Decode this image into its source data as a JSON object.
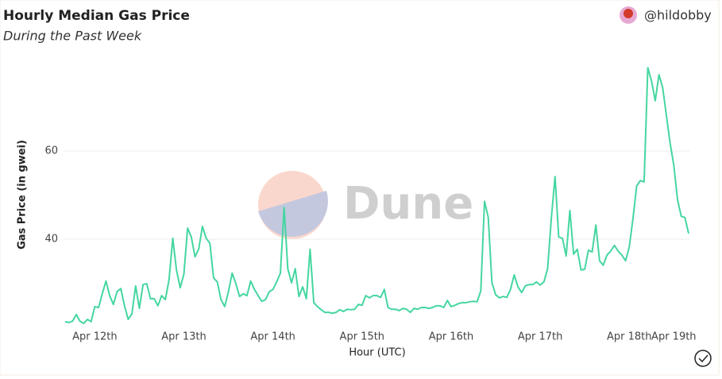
{
  "chart_data": {
    "type": "line",
    "title": "Hourly Median Gas Price",
    "subtitle": "During the Past Week",
    "author": "@hildobby",
    "watermark": "Dune",
    "x_label": "Hour (UTC)",
    "y_label": "Gas Price (in gwei)",
    "series": [
      {
        "name": "Gas Price",
        "color": "#45d6a0",
        "values": [
          21.3,
          21.1,
          21.4,
          22.9,
          21.4,
          20.9,
          21.8,
          21.3,
          24.7,
          24.5,
          27.6,
          30.5,
          27.2,
          25.2,
          28.1,
          28.8,
          24.9,
          21.8,
          23.1,
          29.4,
          24.3,
          29.7,
          29.9,
          26.5,
          26.5,
          24.9,
          27.2,
          26.3,
          30.8,
          40.2,
          33.0,
          29.0,
          32.1,
          42.5,
          40.5,
          36.0,
          37.8,
          42.9,
          40.2,
          39.1,
          31.2,
          30.3,
          26.3,
          24.7,
          28.1,
          32.3,
          29.9,
          27.0,
          27.6,
          27.2,
          30.5,
          28.6,
          27.2,
          25.9,
          26.3,
          28.1,
          28.6,
          30.3,
          32.3,
          47.2,
          33.3,
          30.1,
          33.3,
          27.0,
          29.2,
          26.5,
          37.7,
          25.6,
          24.7,
          24.0,
          23.4,
          23.4,
          23.2,
          23.4,
          24.0,
          23.6,
          24.1,
          24.0,
          24.1,
          25.2,
          25.0,
          27.2,
          26.7,
          27.2,
          27.2,
          26.8,
          28.6,
          24.5,
          24.1,
          24.1,
          23.8,
          24.3,
          24.1,
          23.4,
          24.3,
          24.1,
          24.5,
          24.5,
          24.3,
          24.5,
          24.9,
          24.9,
          24.5,
          26.1,
          24.7,
          25.0,
          25.4,
          25.6,
          25.6,
          25.8,
          25.9,
          25.8,
          28.3,
          48.6,
          45.0,
          30.1,
          27.4,
          26.7,
          27.0,
          26.8,
          28.6,
          31.9,
          29.2,
          27.9,
          29.4,
          29.7,
          29.7,
          30.3,
          29.6,
          30.3,
          33.3,
          44.7,
          54.2,
          40.5,
          40.2,
          36.2,
          46.5,
          36.6,
          37.7,
          33.0,
          33.2,
          37.5,
          37.1,
          43.2,
          35.1,
          34.1,
          36.4,
          37.3,
          38.6,
          37.3,
          36.4,
          35.1,
          38.2,
          44.7,
          52.1,
          53.3,
          53.0,
          78.9,
          75.9,
          71.4,
          77.3,
          74.4,
          68.1,
          61.8,
          56.8,
          49.0,
          45.2,
          44.9,
          41.3
        ]
      }
    ],
    "xlim": [
      0,
      168
    ],
    "xticks": [
      {
        "value": 8,
        "label": "Apr 12th"
      },
      {
        "value": 32,
        "label": "Apr 13th"
      },
      {
        "value": 56,
        "label": "Apr 14th"
      },
      {
        "value": 80,
        "label": "Apr 15th"
      },
      {
        "value": 104,
        "label": "Apr 16th"
      },
      {
        "value": 128,
        "label": "Apr 17th"
      },
      {
        "value": 152,
        "label": "Apr 18th"
      },
      {
        "value": 164,
        "label": "Apr 19th"
      }
    ],
    "ylim": [
      20,
      82
    ],
    "yticks": [
      40,
      60
    ],
    "grid": true
  }
}
